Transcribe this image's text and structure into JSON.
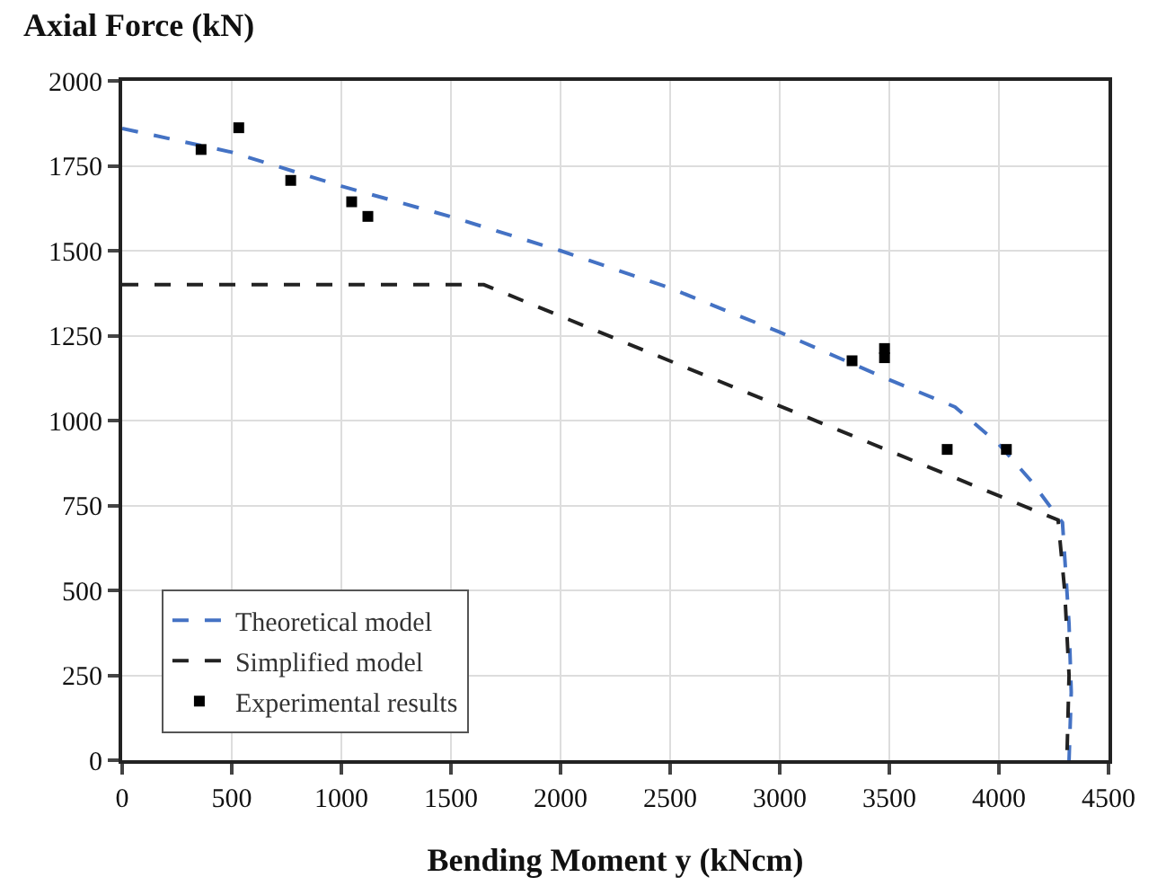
{
  "chart_data": {
    "type": "line",
    "title": "Axial Force (kN)",
    "xlabel": "Bending Moment y (kNcm)",
    "xlim": [
      0,
      4500
    ],
    "xticks": [
      0,
      500,
      1000,
      1500,
      2000,
      2500,
      3000,
      3500,
      4000,
      4500
    ],
    "ylim": [
      0,
      2000
    ],
    "yticks": [
      0,
      250,
      500,
      750,
      1000,
      1250,
      1500,
      1750,
      2000
    ],
    "grid": true,
    "legend": "bottom left",
    "line_style": "dashed",
    "series": [
      {
        "name": "Theoretical model",
        "color": "#4472c4",
        "x": [
          0,
          500,
          1000,
          1500,
          2000,
          2500,
          3000,
          3500,
          3800,
          4000,
          4150,
          4230,
          4290,
          4320,
          4330,
          4320
        ],
        "values": [
          1860,
          1790,
          1690,
          1600,
          1500,
          1390,
          1260,
          1120,
          1040,
          930,
          820,
          750,
          700,
          400,
          200,
          0
        ]
      },
      {
        "name": "Simplified model",
        "color": "#222222",
        "x": [
          0,
          1650,
          4270,
          4300,
          4320,
          4310
        ],
        "values": [
          1400,
          1400,
          707,
          500,
          250,
          0
        ]
      },
      {
        "name": "Experimental results",
        "type": "scatter",
        "marker": "square",
        "color": "#000000",
        "x": [
          360,
          532,
          769,
          1047,
          1121,
          3330,
          3478,
          3478,
          3764,
          4034
        ],
        "values": [
          1798,
          1862,
          1707,
          1644,
          1601,
          1176,
          1185,
          1212,
          915,
          915
        ]
      }
    ]
  }
}
